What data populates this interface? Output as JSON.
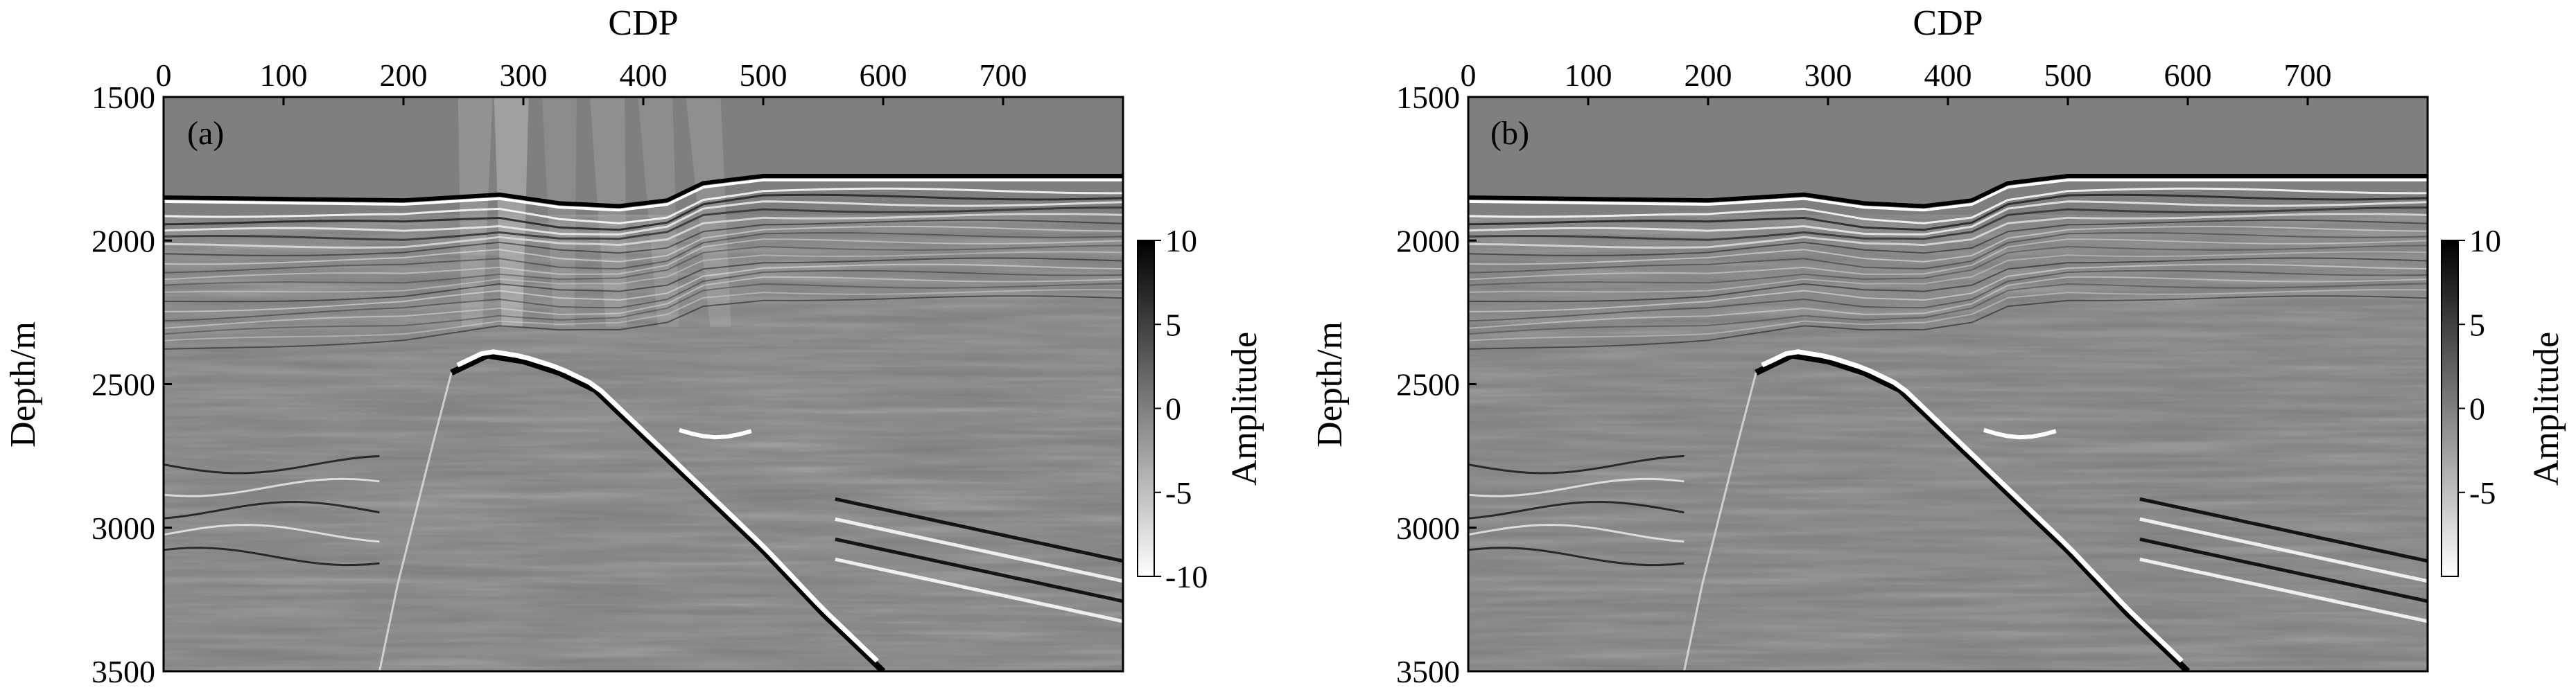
{
  "figure": {
    "colors": {
      "background": "#ffffff",
      "ink": "#000000",
      "mid_gray": "#7f7f7f"
    },
    "colormap": "gray (white = negative, black = positive)"
  },
  "chart_data": [
    {
      "type": "heatmap",
      "panel_label": "(a)",
      "title": "",
      "xlabel": "CDP",
      "ylabel": "Depth/m",
      "colorbar_label": "Amplitude",
      "x_axis_position": "top",
      "xlim": [
        0,
        800
      ],
      "ylim": [
        1500,
        3500
      ],
      "y_inverted": true,
      "x_ticks": [
        0,
        100,
        200,
        300,
        400,
        500,
        600,
        700
      ],
      "y_ticks": [
        1500,
        2000,
        2500,
        3000,
        3500
      ],
      "clim": [
        -10,
        10
      ],
      "colorbar_ticks": [
        10,
        5,
        0,
        -5,
        -10
      ],
      "seabed_depth": [
        [
          0,
          1850
        ],
        [
          100,
          1855
        ],
        [
          200,
          1860
        ],
        [
          280,
          1840
        ],
        [
          330,
          1870
        ],
        [
          380,
          1880
        ],
        [
          420,
          1860
        ],
        [
          450,
          1800
        ],
        [
          500,
          1775
        ],
        [
          600,
          1775
        ],
        [
          700,
          1775
        ],
        [
          800,
          1775
        ]
      ],
      "salt_flank_top": [
        [
          240,
          2460
        ],
        [
          270,
          2400
        ],
        [
          300,
          2420
        ],
        [
          330,
          2460
        ],
        [
          360,
          2520
        ],
        [
          400,
          2680
        ],
        [
          450,
          2880
        ],
        [
          500,
          3080
        ],
        [
          550,
          3300
        ],
        [
          600,
          3500
        ]
      ],
      "notes": "Migration noise / smearing artifacts above the salt between CDP 250-480"
    },
    {
      "type": "heatmap",
      "panel_label": "(b)",
      "title": "",
      "xlabel": "CDP",
      "ylabel": "Depth/m",
      "colorbar_label": "Amplitude",
      "x_axis_position": "top",
      "xlim": [
        0,
        800
      ],
      "ylim": [
        1500,
        3500
      ],
      "y_inverted": true,
      "x_ticks": [
        0,
        100,
        200,
        300,
        400,
        500,
        600,
        700
      ],
      "y_ticks": [
        1500,
        2000,
        2500,
        3000,
        3500
      ],
      "clim": [
        -10,
        10
      ],
      "colorbar_ticks": [
        10,
        5,
        0,
        -5
      ],
      "seabed_depth": [
        [
          0,
          1850
        ],
        [
          100,
          1855
        ],
        [
          200,
          1860
        ],
        [
          280,
          1840
        ],
        [
          330,
          1870
        ],
        [
          380,
          1880
        ],
        [
          420,
          1860
        ],
        [
          450,
          1800
        ],
        [
          500,
          1775
        ],
        [
          600,
          1775
        ],
        [
          700,
          1775
        ],
        [
          800,
          1775
        ]
      ],
      "salt_flank_top": [
        [
          240,
          2460
        ],
        [
          270,
          2400
        ],
        [
          300,
          2420
        ],
        [
          330,
          2460
        ],
        [
          360,
          2520
        ],
        [
          400,
          2680
        ],
        [
          450,
          2880
        ],
        [
          500,
          3080
        ],
        [
          550,
          3300
        ],
        [
          600,
          3500
        ]
      ],
      "notes": "Artifacts suppressed"
    }
  ]
}
